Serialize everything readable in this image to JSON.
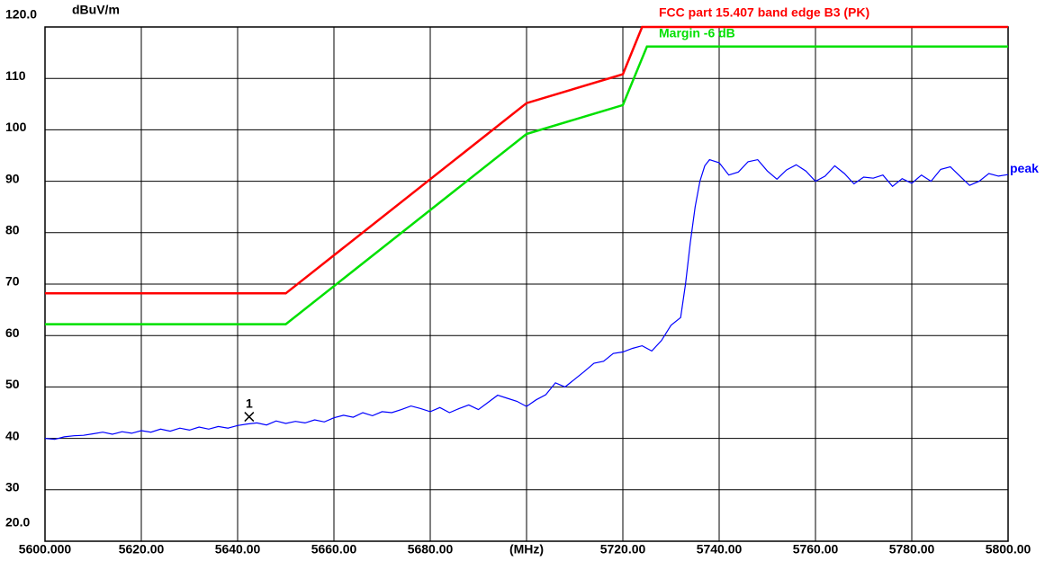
{
  "chart_data": {
    "type": "line",
    "y_label": "dBuV/m",
    "xlim": [
      5600,
      5800
    ],
    "ylim": [
      20,
      120
    ],
    "xticks": [
      {
        "value": 5600,
        "label": "5600.000"
      },
      {
        "value": 5620,
        "label": "5620.00"
      },
      {
        "value": 5640,
        "label": "5640.00"
      },
      {
        "value": 5660,
        "label": "5660.00"
      },
      {
        "value": 5680,
        "label": "5680.00"
      },
      {
        "value": 5700,
        "label": "(MHz)"
      },
      {
        "value": 5720,
        "label": "5720.00"
      },
      {
        "value": 5740,
        "label": "5740.00"
      },
      {
        "value": 5760,
        "label": "5760.00"
      },
      {
        "value": 5780,
        "label": "5780.00"
      },
      {
        "value": 5800,
        "label": "5800.00"
      }
    ],
    "yticks": [
      {
        "value": 20,
        "label": "20.0"
      },
      30,
      40,
      50,
      60,
      70,
      80,
      90,
      100,
      110,
      {
        "value": 120,
        "label": "120.0"
      }
    ],
    "grid": true,
    "series": [
      {
        "name": "FCC part 15.407 band edge B3 (PK)",
        "color": "#ff0000",
        "x": [
          5600,
          5650,
          5700,
          5720,
          5724,
          5800
        ],
        "values": [
          68.2,
          68.2,
          105.2,
          110.8,
          120,
          120
        ]
      },
      {
        "name": "Margin -6 dB",
        "color": "#00e000",
        "x": [
          5600,
          5650,
          5700,
          5720,
          5725,
          5800
        ],
        "values": [
          62.2,
          62.2,
          99.2,
          104.8,
          116.2,
          116.2
        ]
      },
      {
        "name": "peak",
        "color": "#0000ff",
        "x": [
          5600,
          5602,
          5604,
          5606,
          5608,
          5610,
          5612,
          5614,
          5616,
          5618,
          5620,
          5622,
          5624,
          5626,
          5628,
          5630,
          5632,
          5634,
          5636,
          5638,
          5640,
          5642,
          5644,
          5646,
          5648,
          5650,
          5652,
          5654,
          5656,
          5658,
          5660,
          5662,
          5664,
          5666,
          5668,
          5670,
          5672,
          5674,
          5676,
          5678,
          5680,
          5682,
          5684,
          5686,
          5688,
          5690,
          5692,
          5694,
          5696,
          5698,
          5700,
          5702,
          5704,
          5706,
          5708,
          5710,
          5712,
          5714,
          5716,
          5718,
          5720,
          5722,
          5724,
          5726,
          5728,
          5730,
          5732,
          5733,
          5734,
          5735,
          5736,
          5737,
          5738,
          5740,
          5742,
          5744,
          5746,
          5748,
          5750,
          5752,
          5754,
          5756,
          5758,
          5760,
          5762,
          5764,
          5766,
          5768,
          5770,
          5772,
          5774,
          5776,
          5778,
          5780,
          5782,
          5784,
          5786,
          5788,
          5790,
          5792,
          5794,
          5796,
          5798,
          5800
        ],
        "values": [
          40,
          39.8,
          40.3,
          40.5,
          40.6,
          40.9,
          41.2,
          40.8,
          41.3,
          41.0,
          41.5,
          41.2,
          41.8,
          41.4,
          42.0,
          41.6,
          42.2,
          41.8,
          42.3,
          42.0,
          42.5,
          42.8,
          43.0,
          42.6,
          43.4,
          42.9,
          43.3,
          43.0,
          43.6,
          43.2,
          44.0,
          44.5,
          44.1,
          45.0,
          44.4,
          45.2,
          45.0,
          45.6,
          46.3,
          45.8,
          45.2,
          46.0,
          45.0,
          45.8,
          46.5,
          45.6,
          47.0,
          48.4,
          47.8,
          47.2,
          46.2,
          47.5,
          48.5,
          50.8,
          50.0,
          51.5,
          53.0,
          54.6,
          55.0,
          56.5,
          56.8,
          57.5,
          58.0,
          57.0,
          59.0,
          62.0,
          63.5,
          70,
          78,
          85,
          90,
          93,
          94.2,
          93.6,
          91.2,
          91.8,
          93.8,
          94.2,
          92.0,
          90.4,
          92.2,
          93.2,
          92.0,
          90.0,
          91.0,
          93.0,
          91.5,
          89.5,
          90.8,
          90.6,
          91.2,
          89.0,
          90.5,
          89.6,
          91.2,
          90.0,
          92.3,
          92.8,
          91.0,
          89.2,
          90.0,
          91.5,
          91.0,
          91.3
        ]
      }
    ],
    "markers": [
      {
        "label": "1",
        "x": 5642.4,
        "y": 44.2
      }
    ]
  }
}
